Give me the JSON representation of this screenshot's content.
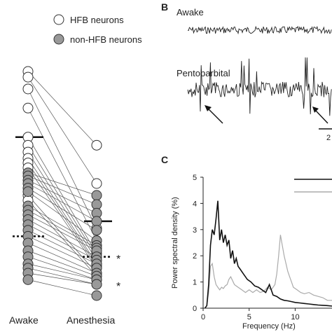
{
  "panels": {
    "B": {
      "letter": "B",
      "traces": [
        "Awake",
        "Pentobarbital"
      ],
      "scalebar_label_partial": "2"
    },
    "C": {
      "letter": "C"
    }
  },
  "chart_data": [
    {
      "type": "scatter",
      "panel": "A (partial)",
      "categories": [
        "Awake",
        "Anesthesia"
      ],
      "legend": [
        {
          "name": "HFB neurons",
          "fill": "#ffffff"
        },
        {
          "name": "non-HFB neurons",
          "fill": "#999999"
        }
      ],
      "paired": true,
      "awake_hfb": [
        2.0,
        1.9,
        1.7,
        1.4,
        1.0,
        0.9,
        0.82,
        0.75,
        0.7,
        0.65,
        0.4,
        0.36
      ],
      "anesthesia_hfb": [
        0.9,
        0.5,
        0.18,
        0.12,
        0.07,
        0.06,
        0.05,
        0.04,
        0.035,
        0.03,
        0.02,
        0.015
      ],
      "awake_non_hfb": [
        0.6,
        0.57,
        0.53,
        0.5,
        0.46,
        0.43,
        0.32,
        0.29,
        0.26,
        0.23,
        0.2,
        0.17,
        0.14,
        0.11,
        0.08,
        0.06,
        0.04,
        0.03,
        0.02,
        0.01
      ],
      "anesthesia_non_hfb": [
        0.4,
        0.33,
        0.27,
        0.22,
        0.17,
        0.12,
        0.1,
        0.09,
        0.08,
        0.06,
        0.05,
        0.04,
        0.03,
        0.02,
        0.015,
        0.01,
        0.01,
        0.005,
        0.005,
        0.0
      ],
      "mean_markers": {
        "awake_solid": 1.0,
        "awake_dotted": 0.14,
        "anesthesia_solid": 0.22,
        "anesthesia_dotted": 0.06
      },
      "annotations": [
        "*",
        "*"
      ]
    },
    {
      "type": "line",
      "panel": "C",
      "xlabel": "Frequency (Hz)",
      "ylabel": "Power spectral density (%)",
      "xlim": [
        0,
        14
      ],
      "ylim": [
        0,
        5
      ],
      "xticks": [
        0,
        5,
        10
      ],
      "yticks": [
        0,
        1,
        2,
        3,
        4,
        5
      ],
      "series": [
        {
          "name": "",
          "color": "#111111",
          "x": [
            0.2,
            0.4,
            0.6,
            0.8,
            1.0,
            1.2,
            1.4,
            1.6,
            1.8,
            2.0,
            2.2,
            2.4,
            2.6,
            2.8,
            3.0,
            3.2,
            3.4,
            3.6,
            3.8,
            4.0,
            4.4,
            4.8,
            5.2,
            5.6,
            6.0,
            6.4,
            6.8,
            7.2,
            7.6,
            8.0,
            8.4,
            8.8,
            9.2,
            9.6,
            10.0,
            10.5,
            11,
            11.5,
            12,
            12.5,
            13,
            13.5,
            14
          ],
          "y": [
            0.0,
            0.1,
            0.9,
            2.4,
            3.0,
            2.8,
            3.4,
            4.1,
            2.6,
            3.0,
            2.5,
            2.8,
            2.4,
            2.6,
            1.9,
            2.2,
            1.7,
            1.9,
            1.6,
            1.5,
            1.3,
            1.1,
            1.0,
            0.85,
            0.8,
            0.7,
            0.6,
            0.9,
            0.5,
            0.45,
            0.35,
            0.3,
            0.28,
            0.25,
            0.22,
            0.2,
            0.18,
            0.16,
            0.14,
            0.12,
            0.11,
            0.1,
            0.08
          ]
        },
        {
          "name": "",
          "color": "#aaaaaa",
          "x": [
            0.2,
            0.4,
            0.6,
            0.8,
            1.0,
            1.2,
            1.4,
            1.6,
            1.8,
            2.0,
            2.2,
            2.4,
            2.6,
            2.8,
            3.0,
            3.4,
            3.8,
            4.2,
            4.6,
            5.0,
            5.4,
            5.8,
            6.2,
            6.6,
            7.0,
            7.4,
            7.8,
            8.0,
            8.2,
            8.4,
            8.6,
            8.8,
            9.0,
            9.2,
            9.4,
            9.6,
            9.8,
            10.2,
            10.6,
            11,
            11.5,
            12,
            12.5,
            13,
            13.5,
            14
          ],
          "y": [
            0.0,
            0.1,
            0.6,
            1.6,
            1.7,
            1.2,
            0.9,
            0.8,
            0.7,
            0.8,
            0.75,
            0.85,
            0.9,
            1.1,
            1.2,
            0.9,
            0.8,
            0.7,
            0.6,
            0.7,
            0.6,
            0.7,
            0.6,
            0.65,
            0.8,
            0.7,
            0.9,
            1.3,
            2.0,
            2.8,
            2.4,
            2.0,
            1.7,
            1.4,
            1.2,
            1.0,
            0.8,
            0.7,
            0.6,
            0.55,
            0.6,
            0.5,
            0.45,
            0.4,
            0.3,
            0.3
          ]
        }
      ]
    }
  ]
}
